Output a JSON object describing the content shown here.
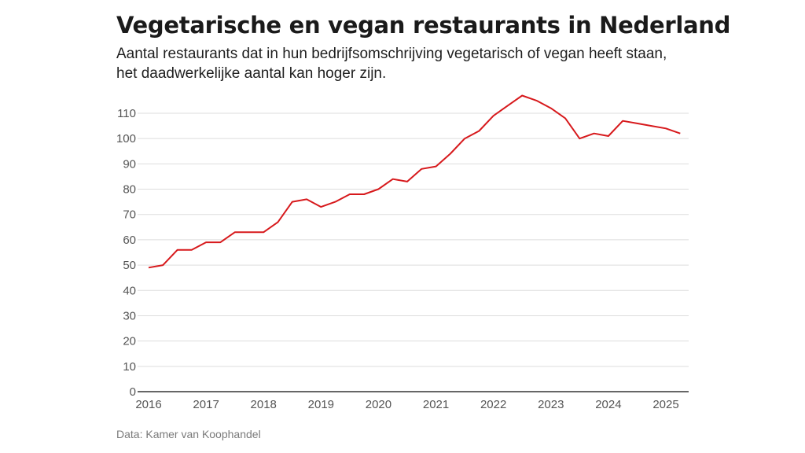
{
  "header": {
    "title": "Vegetarische en vegan restaurants in Nederland",
    "subtitle": "Aantal restaurants dat in hun bedrijfsomschrijving vegetarisch of vegan heeft staan, het daadwerkelijke aantal kan hoger zijn."
  },
  "footer": {
    "source": "Data: Kamer van Koophandel"
  },
  "chart_data": {
    "type": "line",
    "title": "Vegetarische en vegan restaurants in Nederland",
    "subtitle": "Aantal restaurants dat in hun bedrijfsomschrijving vegetarisch of vegan heeft staan, het daadwerkelijke aantal kan hoger zijn.",
    "xlabel": "",
    "ylabel": "",
    "xlim": [
      2016,
      2025.25
    ],
    "ylim": [
      0,
      110
    ],
    "grid": true,
    "legend": "none",
    "line_color": "#d7191c",
    "x_ticks": [
      2016,
      2017,
      2018,
      2019,
      2020,
      2021,
      2022,
      2023,
      2024,
      2025
    ],
    "x_tick_labels": [
      "2016",
      "2017",
      "2018",
      "2019",
      "2020",
      "2021",
      "2022",
      "2023",
      "2024",
      "2025"
    ],
    "y_ticks": [
      0,
      10,
      20,
      30,
      40,
      50,
      60,
      70,
      80,
      90,
      100,
      110
    ],
    "y_tick_labels": [
      "0",
      "10",
      "20",
      "30",
      "40",
      "50",
      "60",
      "70",
      "80",
      "90",
      "100",
      "110"
    ],
    "series": [
      {
        "name": "Vegetarische en vegan restaurants",
        "x": [
          2016.0,
          2016.25,
          2016.5,
          2016.75,
          2017.0,
          2017.25,
          2017.5,
          2017.75,
          2018.0,
          2018.25,
          2018.5,
          2018.75,
          2019.0,
          2019.25,
          2019.5,
          2019.75,
          2020.0,
          2020.25,
          2020.5,
          2020.75,
          2021.0,
          2021.25,
          2021.5,
          2021.75,
          2022.0,
          2022.25,
          2022.5,
          2022.75,
          2023.0,
          2023.25,
          2023.5,
          2023.75,
          2024.0,
          2024.25,
          2024.5,
          2024.75,
          2025.0,
          2025.25
        ],
        "values": [
          49,
          50,
          56,
          56,
          59,
          59,
          63,
          63,
          63,
          67,
          75,
          76,
          73,
          75,
          78,
          78,
          80,
          84,
          83,
          88,
          89,
          94,
          100,
          103,
          109,
          113,
          117,
          115,
          112,
          108,
          100,
          102,
          101,
          107,
          106,
          105,
          104,
          102
        ]
      }
    ],
    "source": "Data: Kamer van Koophandel"
  }
}
